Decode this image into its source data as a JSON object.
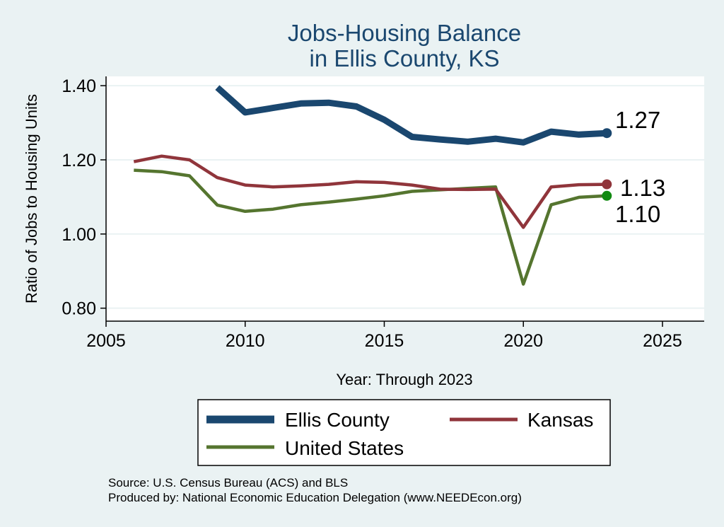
{
  "chart_data": {
    "type": "line",
    "title": [
      "Jobs-Housing Balance",
      "in Ellis County, KS"
    ],
    "xlabel": "Year: Through 2023",
    "ylabel": "Ratio of Jobs to Housing Units",
    "xlim": [
      2005,
      2026.5
    ],
    "ylim": [
      0.765,
      1.425
    ],
    "xticks": [
      2005,
      2010,
      2015,
      2020,
      2025
    ],
    "yticks": [
      0.8,
      1.0,
      1.2,
      1.4
    ],
    "ytick_labels": [
      "0.80",
      "1.00",
      "1.20",
      "1.40"
    ],
    "grid": true,
    "series": [
      {
        "name": "Ellis County",
        "color": "#1a476f",
        "x": [
          2009,
          2010,
          2011,
          2012,
          2013,
          2014,
          2015,
          2016,
          2017,
          2018,
          2019,
          2020,
          2021,
          2022,
          2023
        ],
        "values": [
          1.395,
          1.328,
          1.34,
          1.352,
          1.354,
          1.344,
          1.308,
          1.262,
          1.255,
          1.249,
          1.257,
          1.247,
          1.276,
          1.268,
          1.272
        ],
        "end_label": "1.27"
      },
      {
        "name": "Kansas",
        "color": "#90353b",
        "x": [
          2006,
          2007,
          2008,
          2009,
          2010,
          2011,
          2012,
          2013,
          2014,
          2015,
          2016,
          2017,
          2018,
          2019,
          2020,
          2021,
          2022,
          2023
        ],
        "values": [
          1.195,
          1.21,
          1.2,
          1.152,
          1.132,
          1.127,
          1.13,
          1.134,
          1.141,
          1.139,
          1.132,
          1.121,
          1.12,
          1.121,
          1.018,
          1.127,
          1.133,
          1.134
        ],
        "end_label": "1.13"
      },
      {
        "name": "United States",
        "color": "#55752f",
        "x": [
          2006,
          2007,
          2008,
          2009,
          2010,
          2011,
          2012,
          2013,
          2014,
          2015,
          2016,
          2017,
          2018,
          2019,
          2020,
          2021,
          2022,
          2023
        ],
        "values": [
          1.172,
          1.168,
          1.157,
          1.078,
          1.061,
          1.067,
          1.079,
          1.086,
          1.094,
          1.103,
          1.115,
          1.119,
          1.123,
          1.127,
          0.865,
          1.079,
          1.099,
          1.103
        ],
        "end_label": "1.10"
      }
    ],
    "legend": {
      "position": "bottom",
      "entries": [
        "Ellis County",
        "Kansas",
        "United States"
      ]
    },
    "notes": [
      "Source: U.S. Census Bureau (ACS) and BLS",
      "Produced by: National Economic Education Delegation (www.NEEDEcon.org)"
    ]
  },
  "colors": {
    "background": "#eaf2f3",
    "plot_background": "#ffffff",
    "grid": "#eaf2f3",
    "title": "#1a476f",
    "us_end_marker": "#118a11"
  }
}
